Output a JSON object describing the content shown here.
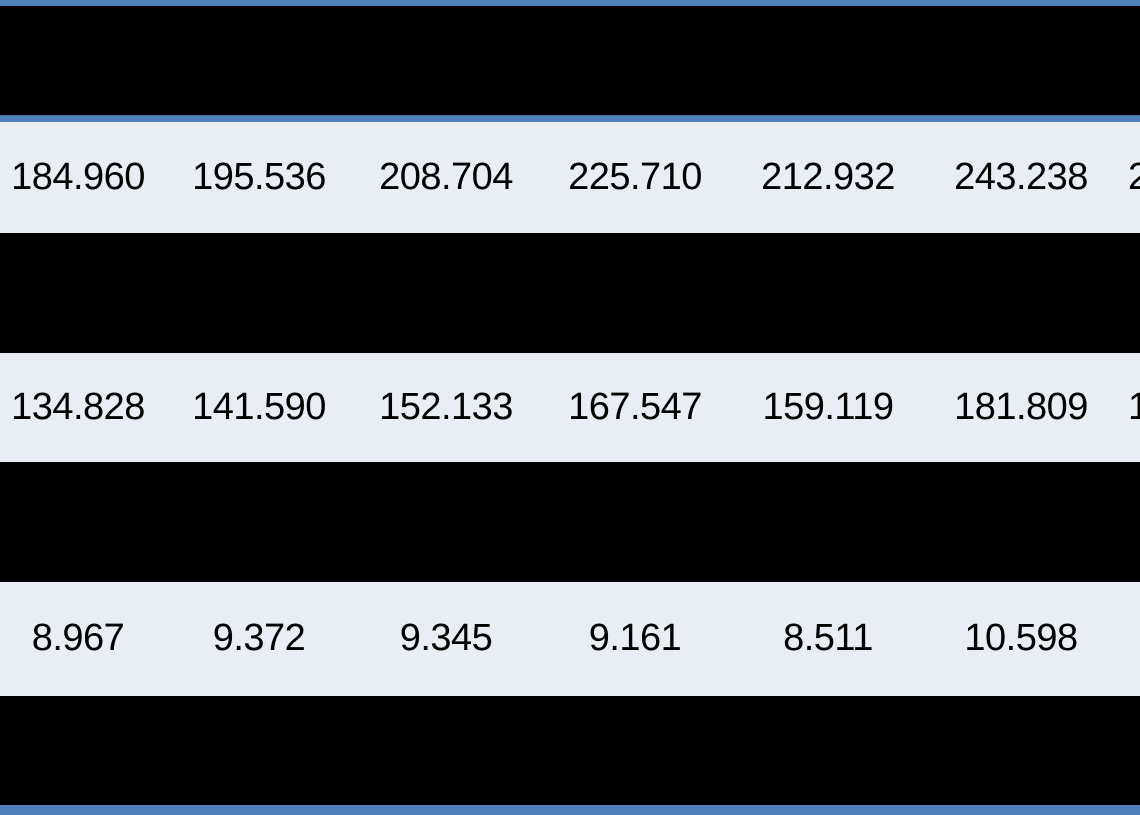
{
  "table": {
    "description": "Cropped numeric data table with alternating black bands and light rows",
    "rows": [
      {
        "values": [
          "184.960",
          "195.536",
          "208.704",
          "225.710",
          "212.932",
          "243.238"
        ],
        "clipped_value_partial": "2"
      },
      {
        "values": [
          "134.828",
          "141.590",
          "152.133",
          "167.547",
          "159.119",
          "181.809"
        ],
        "clipped_value_partial": "1"
      },
      {
        "values": [
          "8.967",
          "9.372",
          "9.345",
          "9.161",
          "8.511",
          "10.598"
        ],
        "clipped_value_partial": ""
      }
    ],
    "colors": {
      "accent_blue": "#4f81bd",
      "band_light": "#e9edf4",
      "band_dark": "#000000",
      "text": "#000000"
    }
  }
}
